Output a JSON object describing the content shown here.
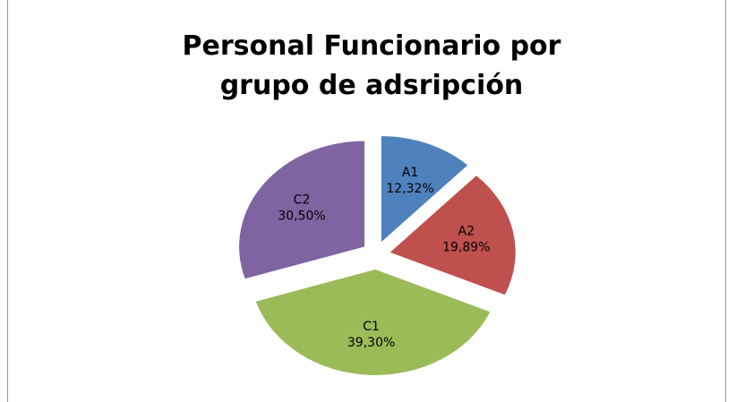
{
  "chart_data": {
    "type": "pie",
    "title": "Personal Funcionario por grupo de adsripción",
    "categories": [
      "A1",
      "A2",
      "C1",
      "C2"
    ],
    "values": [
      12.32,
      19.89,
      39.3,
      30.5
    ],
    "value_labels": [
      "12,32%",
      "19,89%",
      "39,30%",
      "30,50%"
    ],
    "colors": [
      "#4f81bd",
      "#c0504d",
      "#9bbb59",
      "#8064a2"
    ],
    "exploded": true
  }
}
